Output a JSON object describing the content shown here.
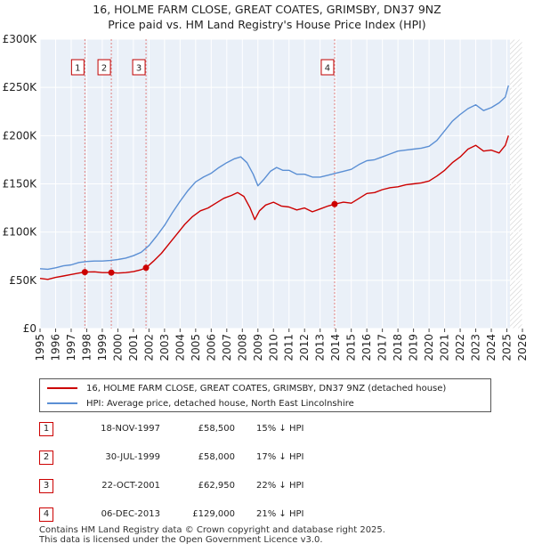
{
  "chart_data": {
    "type": "line",
    "title": "16, HOLME FARM CLOSE, GREAT COATES, GRIMSBY, DN37 9NZ",
    "subtitle": "Price paid vs. HM Land Registry's House Price Index (HPI)",
    "xlim": [
      1995,
      2026
    ],
    "ylim": [
      0,
      300000
    ],
    "x_ticks": [
      "1995",
      "1996",
      "1997",
      "1998",
      "1999",
      "2000",
      "2001",
      "2002",
      "2003",
      "2004",
      "2005",
      "2006",
      "2007",
      "2008",
      "2009",
      "2010",
      "2011",
      "2012",
      "2013",
      "2014",
      "2015",
      "2016",
      "2017",
      "2018",
      "2019",
      "2020",
      "2021",
      "2022",
      "2023",
      "2024",
      "2025",
      "2026"
    ],
    "y_ticks": [
      {
        "value": 0,
        "label": "£0"
      },
      {
        "value": 50000,
        "label": "£50K"
      },
      {
        "value": 100000,
        "label": "£100K"
      },
      {
        "value": 150000,
        "label": "£150K"
      },
      {
        "value": 200000,
        "label": "£200K"
      },
      {
        "value": 250000,
        "label": "£250K"
      },
      {
        "value": 300000,
        "label": "£300K"
      }
    ],
    "series": [
      {
        "name": "16, HOLME FARM CLOSE, GREAT COATES, GRIMSBY, DN37 9NZ (detached house)",
        "color": "#cc0000",
        "x": [
          1995,
          1995.5,
          1996,
          1996.5,
          1997,
          1997.5,
          1997.88,
          1998.5,
          1999,
          1999.58,
          2000,
          2000.5,
          2001,
          2001.5,
          2001.81,
          2002.3,
          2002.8,
          2003.3,
          2003.8,
          2004.3,
          2004.8,
          2005.3,
          2005.8,
          2006.3,
          2006.8,
          2007.3,
          2007.7,
          2008.1,
          2008.5,
          2008.8,
          2009.1,
          2009.5,
          2010,
          2010.5,
          2011,
          2011.5,
          2012,
          2012.5,
          2013,
          2013.5,
          2013.93,
          2014.5,
          2015,
          2015.5,
          2016,
          2016.5,
          2017,
          2017.5,
          2018,
          2018.5,
          2019,
          2019.5,
          2020,
          2020.5,
          2021,
          2021.5,
          2022,
          2022.5,
          2023,
          2023.5,
          2024,
          2024.5,
          2024.9,
          2025.1
        ],
        "values": [
          52000,
          51000,
          53000,
          54500,
          56000,
          57500,
          58500,
          58800,
          58000,
          58000,
          57500,
          58000,
          59000,
          61000,
          62950,
          70000,
          78000,
          88000,
          98000,
          108000,
          116000,
          122000,
          125000,
          130000,
          135000,
          138000,
          141000,
          137000,
          125000,
          113000,
          122000,
          128000,
          131000,
          127000,
          126000,
          123000,
          125000,
          121000,
          124000,
          127000,
          129000,
          131000,
          130000,
          135000,
          140000,
          141000,
          144000,
          146000,
          147000,
          149000,
          150000,
          151000,
          153000,
          158000,
          164000,
          172000,
          178000,
          186000,
          190000,
          184000,
          185000,
          182000,
          190000,
          200000
        ]
      },
      {
        "name": "HPI: Average price, detached house, North East Lincolnshire",
        "color": "#5b8fd4",
        "x": [
          1995,
          1995.5,
          1996,
          1996.5,
          1997,
          1997.5,
          1998,
          1998.5,
          1999,
          1999.5,
          2000,
          2000.5,
          2001,
          2001.5,
          2002,
          2002.5,
          2003,
          2003.5,
          2004,
          2004.5,
          2005,
          2005.5,
          2006,
          2006.5,
          2007,
          2007.5,
          2007.9,
          2008.3,
          2008.7,
          2009,
          2009.4,
          2009.8,
          2010.2,
          2010.6,
          2011,
          2011.5,
          2012,
          2012.5,
          2013,
          2013.5,
          2014,
          2014.5,
          2015,
          2015.5,
          2016,
          2016.5,
          2017,
          2017.5,
          2018,
          2018.5,
          2019,
          2019.5,
          2020,
          2020.5,
          2021,
          2021.5,
          2022,
          2022.5,
          2023,
          2023.5,
          2024,
          2024.5,
          2024.9,
          2025.1
        ],
        "values": [
          62000,
          61500,
          63000,
          65000,
          66000,
          68500,
          69500,
          70000,
          70000,
          70500,
          71500,
          73000,
          75500,
          79000,
          86000,
          96000,
          107000,
          120000,
          132000,
          143000,
          152000,
          157000,
          161000,
          167000,
          172000,
          176000,
          178000,
          172000,
          160000,
          148000,
          155000,
          163000,
          167000,
          164000,
          164000,
          160000,
          160000,
          157000,
          157000,
          159000,
          161000,
          163000,
          165000,
          170000,
          174000,
          175000,
          178000,
          181000,
          184000,
          185000,
          186000,
          187000,
          189000,
          195000,
          205000,
          215000,
          222000,
          228000,
          232000,
          226000,
          229000,
          234000,
          240000,
          252000
        ]
      }
    ],
    "transactions": [
      {
        "id": "1",
        "date": "18-NOV-1997",
        "price": "£58,500",
        "hpi": "15% ↓ HPI",
        "x": 1997.88,
        "value": 58500
      },
      {
        "id": "2",
        "date": "30-JUL-1999",
        "price": "£58,000",
        "hpi": "17% ↓ HPI",
        "x": 1999.58,
        "value": 58000
      },
      {
        "id": "3",
        "date": "22-OCT-2001",
        "price": "£62,950",
        "hpi": "22% ↓ HPI",
        "x": 2001.81,
        "value": 62950
      },
      {
        "id": "4",
        "date": "06-DEC-2013",
        "price": "£129,000",
        "hpi": "21% ↓ HPI",
        "x": 2013.93,
        "value": 129000
      }
    ],
    "future_hatch_from": 2025.2
  },
  "footer": {
    "line1": "Contains HM Land Registry data © Crown copyright and database right 2025.",
    "line2": "This data is licensed under the Open Government Licence v3.0."
  }
}
